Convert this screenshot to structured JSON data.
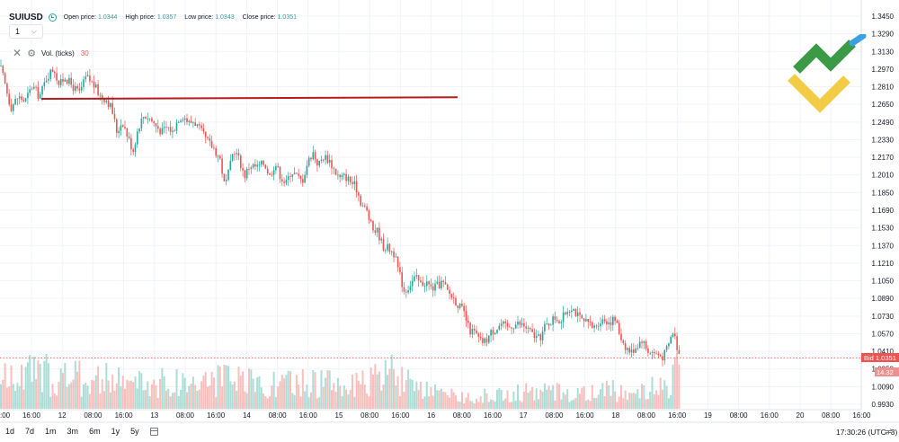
{
  "header": {
    "symbol": "SUIUSD",
    "open_label": "Open price:",
    "open_value": "1.0344",
    "high_label": "High price:",
    "high_value": "1.0357",
    "low_label": "Low price:",
    "low_value": "1.0343",
    "close_label": "Close price:",
    "close_value": "1.0351",
    "interval": "1"
  },
  "volume_pane": {
    "label": "Vol. (ticks)",
    "value": "30"
  },
  "timeframes": [
    "1d",
    "7d",
    "1m",
    "3m",
    "6m",
    "1y",
    "5y"
  ],
  "clock": "17:30:26 (UTC+3)",
  "bid_tag": "Bid  1.0351",
  "volume_tag": "14.32",
  "colors": {
    "up": "#26a69a",
    "down": "#ef5350",
    "level_line": "#b71c1c"
  },
  "chart_data": {
    "type": "candlestick",
    "y_ticks": [
      "1.3450",
      "1.3290",
      "1.3130",
      "1.2970",
      "1.2810",
      "1.2650",
      "1.2490",
      "1.2330",
      "1.2170",
      "1.2010",
      "1.1850",
      "1.1690",
      "1.1530",
      "1.1370",
      "1.1210",
      "1.1050",
      "1.0890",
      "1.0730",
      "1.0570",
      "1.0410",
      "1.0250",
      "1.0090",
      "0.9930"
    ],
    "x_ticks": [
      "16:00",
      "12",
      "08:00",
      "16:00",
      "13",
      "08:00",
      "16:00",
      "14",
      "08:00",
      "16:00",
      "15",
      "08:00",
      "16:00",
      "16",
      "08:00",
      "16:00",
      "17",
      "08:00",
      "16:00",
      "18",
      "08:00",
      "16:00",
      "19",
      "08:00",
      "16:00",
      "20",
      "08:00",
      "16:00"
    ],
    "x_tick_left_fragment": ":00",
    "ylim": [
      0.993,
      1.345
    ],
    "horizontal_level": 1.27,
    "bid": 1.0351,
    "path_points": [
      [
        0,
        1.3
      ],
      [
        5,
        1.285
      ],
      [
        12,
        1.262
      ],
      [
        20,
        1.272
      ],
      [
        28,
        1.268
      ],
      [
        36,
        1.282
      ],
      [
        44,
        1.272
      ],
      [
        52,
        1.29
      ],
      [
        60,
        1.298
      ],
      [
        66,
        1.282
      ],
      [
        72,
        1.29
      ],
      [
        80,
        1.282
      ],
      [
        88,
        1.275
      ],
      [
        96,
        1.29
      ],
      [
        104,
        1.283
      ],
      [
        112,
        1.272
      ],
      [
        118,
        1.27
      ],
      [
        124,
        1.262
      ],
      [
        130,
        1.24
      ],
      [
        136,
        1.25
      ],
      [
        142,
        1.236
      ],
      [
        148,
        1.223
      ],
      [
        154,
        1.245
      ],
      [
        160,
        1.255
      ],
      [
        166,
        1.253
      ],
      [
        172,
        1.247
      ],
      [
        180,
        1.24
      ],
      [
        186,
        1.245
      ],
      [
        192,
        1.24
      ],
      [
        198,
        1.252
      ],
      [
        204,
        1.255
      ],
      [
        210,
        1.248
      ],
      [
        216,
        1.25
      ],
      [
        222,
        1.242
      ],
      [
        230,
        1.232
      ],
      [
        238,
        1.225
      ],
      [
        245,
        1.215
      ],
      [
        250,
        1.19
      ],
      [
        255,
        1.205
      ],
      [
        260,
        1.225
      ],
      [
        266,
        1.215
      ],
      [
        272,
        1.2
      ],
      [
        278,
        1.21
      ],
      [
        286,
        1.208
      ],
      [
        294,
        1.212
      ],
      [
        300,
        1.2
      ],
      [
        306,
        1.212
      ],
      [
        312,
        1.2
      ],
      [
        318,
        1.193
      ],
      [
        324,
        1.205
      ],
      [
        330,
        1.2
      ],
      [
        336,
        1.195
      ],
      [
        342,
        1.212
      ],
      [
        348,
        1.222
      ],
      [
        354,
        1.21
      ],
      [
        360,
        1.218
      ],
      [
        366,
        1.215
      ],
      [
        372,
        1.205
      ],
      [
        378,
        1.198
      ],
      [
        384,
        1.2
      ],
      [
        390,
        1.195
      ],
      [
        396,
        1.19
      ],
      [
        402,
        1.175
      ],
      [
        408,
        1.168
      ],
      [
        414,
        1.152
      ],
      [
        420,
        1.15
      ],
      [
        426,
        1.136
      ],
      [
        432,
        1.135
      ],
      [
        438,
        1.13
      ],
      [
        444,
        1.112
      ],
      [
        450,
        1.095
      ],
      [
        456,
        1.102
      ],
      [
        462,
        1.108
      ],
      [
        468,
        1.102
      ],
      [
        474,
        1.104
      ],
      [
        480,
        1.098
      ],
      [
        486,
        1.1
      ],
      [
        492,
        1.104
      ],
      [
        498,
        1.095
      ],
      [
        504,
        1.09
      ],
      [
        510,
        1.083
      ],
      [
        516,
        1.076
      ],
      [
        522,
        1.06
      ],
      [
        528,
        1.058
      ],
      [
        534,
        1.05
      ],
      [
        540,
        1.05
      ],
      [
        546,
        1.058
      ],
      [
        552,
        1.062
      ],
      [
        558,
        1.066
      ],
      [
        564,
        1.062
      ],
      [
        570,
        1.065
      ],
      [
        576,
        1.066
      ],
      [
        582,
        1.065
      ],
      [
        588,
        1.06
      ],
      [
        594,
        1.055
      ],
      [
        600,
        1.052
      ],
      [
        606,
        1.063
      ],
      [
        612,
        1.068
      ],
      [
        618,
        1.072
      ],
      [
        624,
        1.068
      ],
      [
        630,
        1.078
      ],
      [
        636,
        1.082
      ],
      [
        642,
        1.074
      ],
      [
        648,
        1.068
      ],
      [
        654,
        1.066
      ],
      [
        660,
        1.062
      ],
      [
        666,
        1.068
      ],
      [
        672,
        1.07
      ],
      [
        678,
        1.068
      ],
      [
        684,
        1.07
      ],
      [
        690,
        1.055
      ],
      [
        696,
        1.045
      ],
      [
        702,
        1.04
      ],
      [
        708,
        1.046
      ],
      [
        714,
        1.052
      ],
      [
        720,
        1.042
      ],
      [
        726,
        1.04
      ],
      [
        732,
        1.038
      ],
      [
        738,
        1.036
      ],
      [
        744,
        1.048
      ],
      [
        749,
        1.06
      ],
      [
        754,
        1.042
      ],
      [
        757,
        1.035
      ]
    ],
    "volume_envelope": [
      [
        0,
        0.45
      ],
      [
        40,
        0.55
      ],
      [
        80,
        0.5
      ],
      [
        120,
        0.45
      ],
      [
        160,
        0.4
      ],
      [
        200,
        0.42
      ],
      [
        240,
        0.45
      ],
      [
        280,
        0.4
      ],
      [
        320,
        0.38
      ],
      [
        360,
        0.42
      ],
      [
        400,
        0.35
      ],
      [
        440,
        0.6
      ],
      [
        460,
        0.3
      ],
      [
        500,
        0.2
      ],
      [
        540,
        0.2
      ],
      [
        580,
        0.25
      ],
      [
        620,
        0.28
      ],
      [
        660,
        0.25
      ],
      [
        700,
        0.32
      ],
      [
        740,
        0.35
      ],
      [
        757,
        0.6
      ]
    ]
  }
}
